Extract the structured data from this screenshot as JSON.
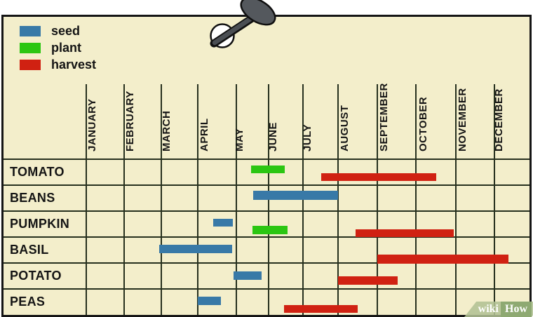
{
  "legend": {
    "items": [
      {
        "label": "seed",
        "color": "#3879a7"
      },
      {
        "label": "plant",
        "color": "#2bc612"
      },
      {
        "label": "harvest",
        "color": "#d02112"
      }
    ]
  },
  "watermark": {
    "wiki": "wiki",
    "how": "How"
  },
  "chart_data": {
    "type": "gantt",
    "title": "",
    "months": [
      "JANUARY",
      "FEBRUARY",
      "MARCH",
      "APRIL",
      "MAY",
      "JUNE",
      "JULY",
      "AUGUST",
      "SEPTEMBER",
      "OCTOBER",
      "NOVEMBER",
      "DECEMBER"
    ],
    "rows": [
      "TOMATO",
      "BEANS",
      "PUMPKIN",
      "BASIL",
      "POTATO",
      "PEAS"
    ],
    "series": [
      {
        "name": "seed",
        "color": "#3879a7"
      },
      {
        "name": "plant",
        "color": "#2bc612"
      },
      {
        "name": "harvest",
        "color": "#d02112"
      }
    ],
    "bars": [
      {
        "row": "TOMATO",
        "kind": "plant",
        "start_month": 4.45,
        "end_month": 5.47,
        "lane_dy": 9,
        "height": 11
      },
      {
        "row": "TOMATO",
        "kind": "harvest",
        "start_month": 6.52,
        "end_month": 9.51,
        "lane_dy": 20,
        "height": 11
      },
      {
        "row": "BEANS",
        "kind": "seed",
        "start_month": 4.52,
        "end_month": 7.0,
        "lane_dy": 8,
        "height": 13
      },
      {
        "row": "PUMPKIN",
        "kind": "seed",
        "start_month": 3.4,
        "end_month": 3.9,
        "lane_dy": 11,
        "height": 11
      },
      {
        "row": "PUMPKIN",
        "kind": "plant",
        "start_month": 4.5,
        "end_month": 5.55,
        "lane_dy": 21,
        "height": 12
      },
      {
        "row": "PUMPKIN",
        "kind": "harvest",
        "start_month": 7.45,
        "end_month": 9.95,
        "lane_dy": 26,
        "height": 11
      },
      {
        "row": "BASIL",
        "kind": "seed",
        "start_month": 1.95,
        "end_month": 3.9,
        "lane_dy": 11,
        "height": 12
      },
      {
        "row": "BASIL",
        "kind": "harvest",
        "start_month": 8.0,
        "end_month": 11.4,
        "lane_dy": 25,
        "height": 13
      },
      {
        "row": "POTATO",
        "kind": "seed",
        "start_month": 3.93,
        "end_month": 4.78,
        "lane_dy": 12,
        "height": 12
      },
      {
        "row": "POTATO",
        "kind": "harvest",
        "start_month": 7.0,
        "end_month": 8.53,
        "lane_dy": 19,
        "height": 12
      },
      {
        "row": "PEAS",
        "kind": "seed",
        "start_month": 3.0,
        "end_month": 3.6,
        "lane_dy": 11,
        "height": 12
      },
      {
        "row": "PEAS",
        "kind": "harvest",
        "start_month": 5.45,
        "end_month": 7.5,
        "lane_dy": 23,
        "height": 11
      }
    ]
  },
  "colors": {
    "background": "#f3eecb",
    "grid_line": "#26301e",
    "border": "#151515",
    "watermark_band": "#b1c194",
    "watermark_box": "#8ea972",
    "pushpin": "#54585d"
  }
}
